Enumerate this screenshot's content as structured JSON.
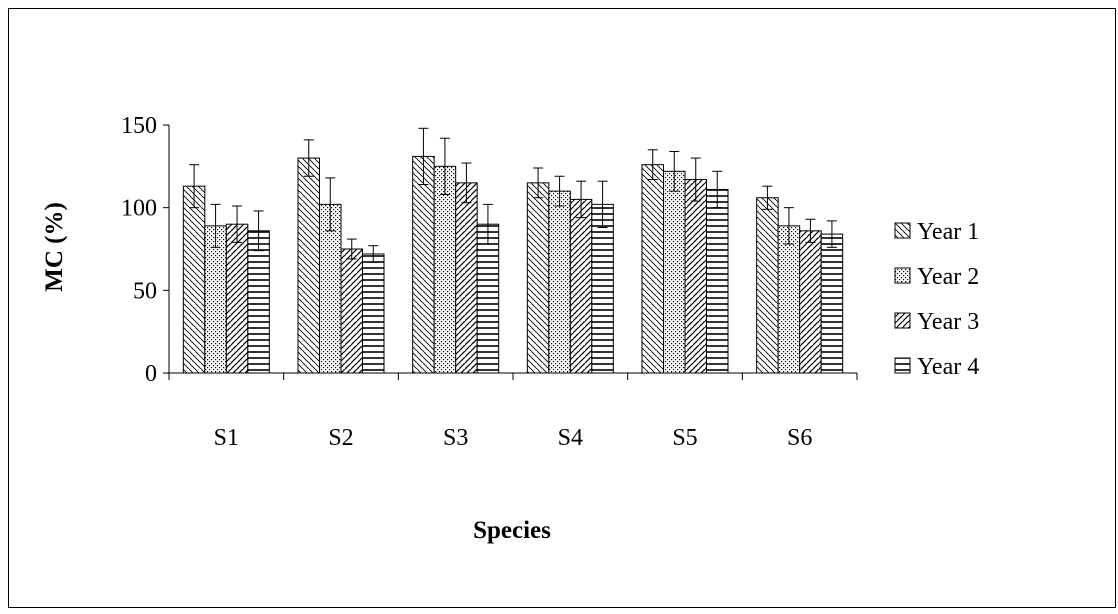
{
  "chart_data": {
    "type": "bar",
    "title": "",
    "xlabel": "Species",
    "ylabel": "MC (%)",
    "ylim": [
      0,
      150
    ],
    "yticks": [
      "0",
      "50",
      "100",
      "150"
    ],
    "grid": false,
    "legend_position": "right",
    "categories": [
      "S1",
      "S2",
      "S3",
      "S4",
      "S5",
      "S6"
    ],
    "series": [
      {
        "name": "Year 1",
        "pattern": "diagonal-down",
        "values": [
          113,
          130,
          131,
          115,
          126,
          106
        ],
        "errors": [
          13,
          11,
          17,
          9,
          9,
          7
        ]
      },
      {
        "name": "Year 2",
        "pattern": "dots",
        "values": [
          89,
          102,
          125,
          110,
          122,
          89
        ],
        "errors": [
          13,
          16,
          17,
          9,
          12,
          11
        ]
      },
      {
        "name": "Year 3",
        "pattern": "diagonal-up",
        "values": [
          90,
          75,
          115,
          105,
          117,
          86
        ],
        "errors": [
          11,
          6,
          12,
          11,
          13,
          7
        ]
      },
      {
        "name": "Year 4",
        "pattern": "horizontal",
        "values": [
          86,
          72,
          90,
          102,
          111,
          84
        ],
        "errors": [
          12,
          5,
          12,
          14,
          11,
          8
        ]
      }
    ],
    "colors": {
      "stroke": "#000000",
      "fill": "#ffffff"
    }
  }
}
